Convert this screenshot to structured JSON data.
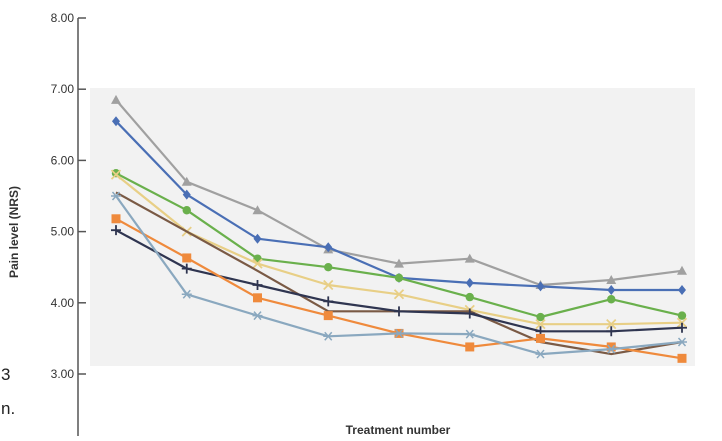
{
  "chart_data": {
    "type": "line",
    "title": "",
    "xlabel": "Treatment number",
    "ylabel": "Pain level (NRS)",
    "ylim": [
      2.8,
      8.0
    ],
    "yticks": [
      "3.00",
      "4.00",
      "5.00",
      "6.00",
      "7.00",
      "8.00"
    ],
    "x": [
      1,
      2,
      3,
      4,
      5,
      6,
      7,
      8,
      9
    ],
    "grid": false,
    "series": [
      {
        "color": "#a0a0a0",
        "marker": "triangle",
        "values": [
          6.85,
          5.7,
          5.3,
          4.75,
          4.55,
          4.62,
          4.25,
          4.32,
          4.45
        ]
      },
      {
        "color": "#4a6fb5",
        "marker": "diamond",
        "values": [
          6.55,
          5.52,
          4.9,
          4.78,
          4.35,
          4.28,
          4.23,
          4.18,
          4.18
        ]
      },
      {
        "color": "#6ab04c",
        "marker": "circle",
        "values": [
          5.82,
          5.3,
          4.62,
          4.5,
          4.35,
          4.08,
          3.8,
          4.05,
          3.82
        ]
      },
      {
        "color": "#e8cf86",
        "marker": "x",
        "values": [
          5.8,
          5.0,
          4.55,
          4.25,
          4.12,
          3.9,
          3.7,
          3.7,
          3.72
        ]
      },
      {
        "color": "#7a5a45",
        "marker": "none",
        "values": [
          5.55,
          5.0,
          4.45,
          3.88,
          3.88,
          3.88,
          3.45,
          3.28,
          3.45
        ]
      },
      {
        "color": "#2f3550",
        "marker": "plus",
        "values": [
          5.02,
          4.48,
          4.25,
          4.02,
          3.88,
          3.85,
          3.6,
          3.6,
          3.65
        ]
      },
      {
        "color": "#ef8a3c",
        "marker": "square",
        "values": [
          5.18,
          4.63,
          4.07,
          3.82,
          3.57,
          3.38,
          3.5,
          3.38,
          3.22
        ]
      },
      {
        "color": "#8aa8bf",
        "marker": "asterisk",
        "values": [
          5.5,
          4.12,
          3.82,
          3.53,
          3.57,
          3.56,
          3.28,
          3.35,
          3.45
        ]
      }
    ]
  },
  "stray_text": {
    "left_line_1": "3",
    "left_line_2": "n."
  }
}
